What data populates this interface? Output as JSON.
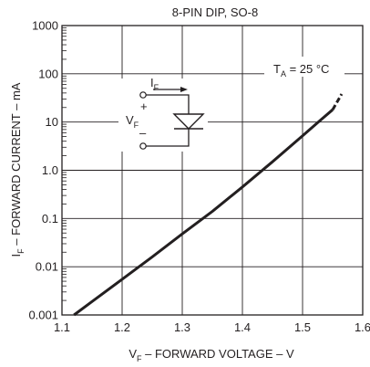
{
  "chart_data": {
    "type": "line",
    "title": "8-PIN DIP, SO-8",
    "annotation": {
      "condition_base": "T",
      "condition_sub": "A",
      "condition_rest": " = 25 °C"
    },
    "xlabel": {
      "base": "V",
      "sub": "F",
      "rest": " – FORWARD VOLTAGE – V"
    },
    "ylabel": {
      "base": "I",
      "sub": "F",
      "rest": " – FORWARD CURRENT – mA"
    },
    "xlim": [
      1.1,
      1.6
    ],
    "ylim": [
      0.001,
      1000
    ],
    "yscale": "log",
    "grid": true,
    "x_ticks": [
      "1.1",
      "1.2",
      "1.3",
      "1.4",
      "1.5",
      "1.6"
    ],
    "y_ticks": [
      "0.001",
      "0.01",
      "0.1",
      "1.0",
      "10",
      "100",
      "1000"
    ],
    "series": [
      {
        "x": [
          1.12,
          1.15,
          1.2,
          1.25,
          1.3,
          1.35,
          1.4,
          1.45,
          1.5,
          1.53,
          1.55
        ],
        "y": [
          0.001,
          0.0019,
          0.0055,
          0.016,
          0.048,
          0.14,
          0.45,
          1.5,
          5.2,
          11,
          18
        ],
        "style": "solid"
      },
      {
        "x": [
          1.55,
          1.565
        ],
        "y": [
          18,
          38
        ],
        "style": "dashed"
      }
    ],
    "inset_labels": {
      "current_base": "I",
      "current_sub": "F",
      "voltage_base": "V",
      "voltage_sub": "F",
      "plus": "+",
      "minus": "–"
    },
    "colors": {
      "ink": "#231f20",
      "background": "#ffffff"
    }
  }
}
